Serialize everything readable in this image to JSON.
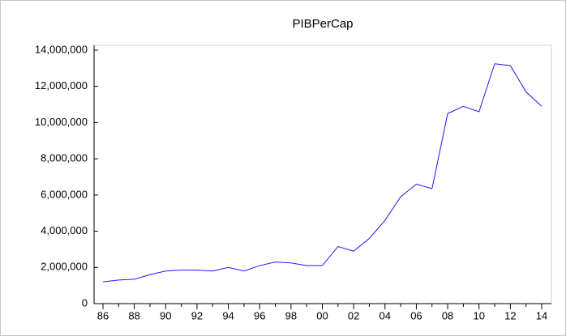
{
  "chart_data": {
    "type": "line",
    "title": "PIBPerCap",
    "categories": [
      "86",
      null,
      "88",
      null,
      "90",
      null,
      "92",
      null,
      "94",
      null,
      "96",
      null,
      "98",
      null,
      "00",
      null,
      "02",
      null,
      "04",
      null,
      "06",
      null,
      "08",
      null,
      "10",
      null,
      "12",
      null,
      "14"
    ],
    "series": [
      {
        "name": "PIBPerCap",
        "color": "#1a1aff",
        "values": [
          1200000,
          1300000,
          1350000,
          1600000,
          1800000,
          1850000,
          1850000,
          1800000,
          2000000,
          1800000,
          2100000,
          2300000,
          2250000,
          2100000,
          2100000,
          3150000,
          2900000,
          3600000,
          4600000,
          5900000,
          6600000,
          6350000,
          10500000,
          10900000,
          10600000,
          13250000,
          13150000,
          11700000,
          10900000
        ]
      }
    ],
    "ylim": [
      0,
      14000000
    ],
    "yticks": [
      0,
      {
        "value": 2000000,
        "label": "2,000,000"
      },
      {
        "value": 4000000,
        "label": "4,000,000"
      },
      {
        "value": 6000000,
        "label": "6,000,000"
      },
      {
        "value": 8000000,
        "label": "8,000,000"
      },
      {
        "value": 10000000,
        "label": "10,000,000"
      },
      {
        "value": 12000000,
        "label": "12,000,000"
      },
      {
        "value": 14000000,
        "label": "14,000,000"
      }
    ],
    "grid": false
  }
}
